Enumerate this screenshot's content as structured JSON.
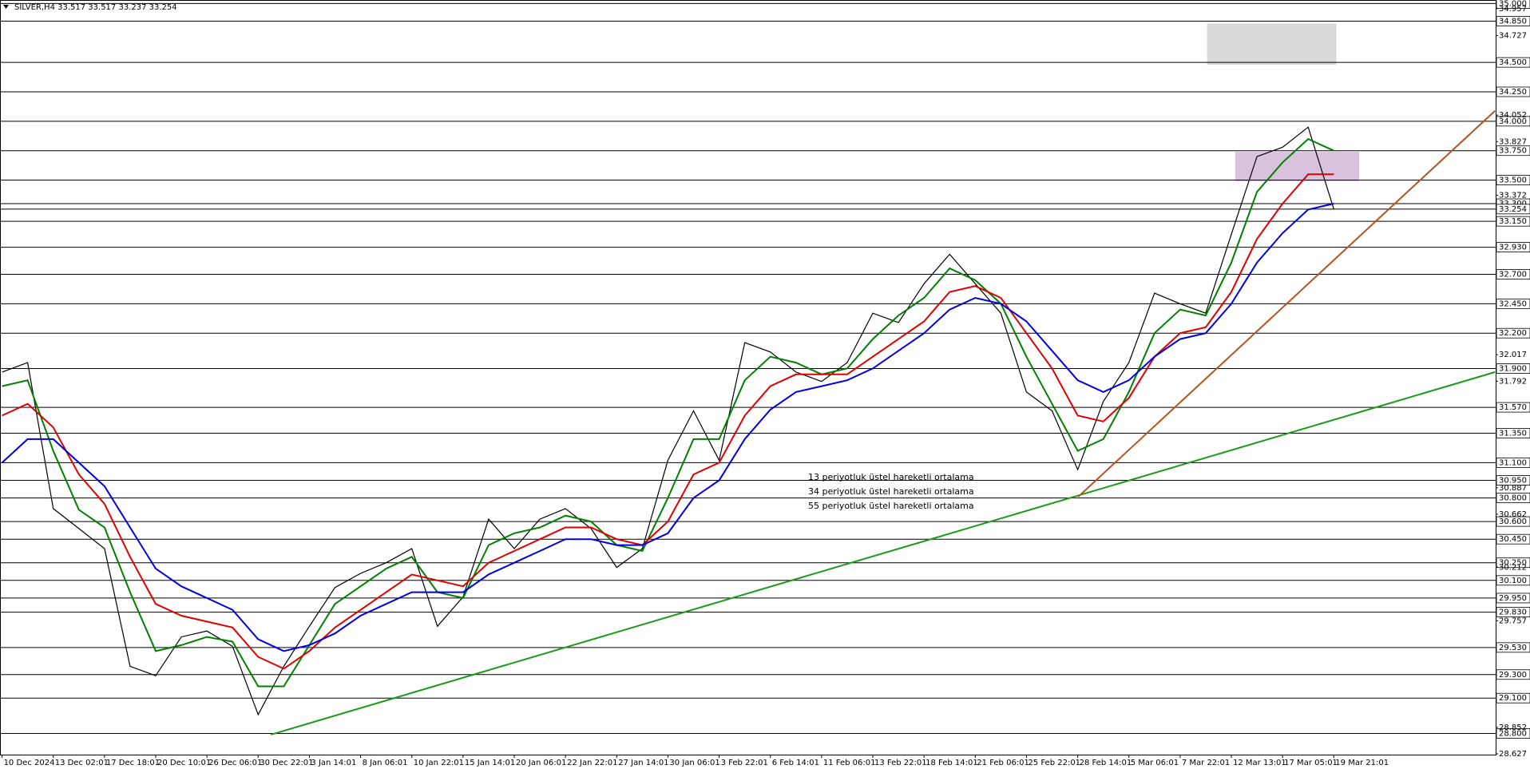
{
  "chart_data": {
    "type": "line",
    "title": "SILVER,H4  33.517 33.517 33.237 33.254",
    "categories": [
      "10 Dec 2024",
      null,
      "13 Dec 02:01",
      null,
      "17 Dec 18:01",
      null,
      "20 Dec 10:01",
      null,
      "26 Dec 06:01",
      null,
      "30 Dec 22:01",
      null,
      "3 Jan 14:01",
      null,
      "8 Jan 06:01",
      null,
      "10 Jan 22:01",
      null,
      "15 Jan 14:01",
      null,
      "20 Jan 06:01",
      null,
      "22 Jan 22:01",
      null,
      "27 Jan 14:01",
      null,
      "30 Jan 06:01",
      null,
      "3 Feb 22:01",
      null,
      "6 Feb 14:01",
      null,
      "11 Feb 06:01",
      null,
      "13 Feb 22:01",
      null,
      "18 Feb 14:01",
      null,
      "21 Feb 06:01",
      null,
      "25 Feb 22:01",
      null,
      "28 Feb 14:01",
      null,
      "5 Mar 06:01",
      null,
      "7 Mar 22:01",
      null,
      "12 Mar 13:01",
      null,
      "17 Mar 05:01",
      null,
      "19 Mar 21:01"
    ],
    "close": {
      "color": "#000000",
      "values": [
        31.87,
        31.95,
        30.71,
        30.54,
        30.37,
        29.37,
        29.29,
        29.62,
        29.67,
        29.54,
        28.96,
        29.37,
        29.71,
        30.04,
        30.16,
        30.25,
        30.37,
        29.71,
        29.96,
        30.62,
        30.37,
        30.62,
        30.71,
        30.54,
        30.21,
        30.37,
        31.12,
        31.54,
        31.12,
        32.12,
        32.04,
        31.87,
        31.79,
        31.95,
        32.37,
        32.29,
        32.62,
        32.87,
        32.62,
        32.37,
        31.7,
        31.54,
        31.04,
        31.62,
        31.95,
        32.54,
        32.45,
        32.37,
        33.04,
        33.7,
        33.78,
        33.95,
        33.254
      ]
    },
    "series": [
      {
        "name": "13 periyotluk üstel hareketli ortalama",
        "color": "#008000",
        "values": [
          31.75,
          31.8,
          31.2,
          30.7,
          30.55,
          30.0,
          29.5,
          29.55,
          29.62,
          29.58,
          29.2,
          29.2,
          29.55,
          29.9,
          30.05,
          30.2,
          30.3,
          30.0,
          29.95,
          30.4,
          30.5,
          30.55,
          30.65,
          30.6,
          30.4,
          30.35,
          30.8,
          31.3,
          31.3,
          31.8,
          32.0,
          31.95,
          31.85,
          31.9,
          32.15,
          32.35,
          32.5,
          32.75,
          32.65,
          32.45,
          32.0,
          31.6,
          31.2,
          31.3,
          31.7,
          32.2,
          32.4,
          32.35,
          32.8,
          33.4,
          33.65,
          33.85,
          33.75
        ]
      },
      {
        "name": "34 periyotluk üstel hareketli ortalama",
        "color": "#e00000",
        "values": [
          31.5,
          31.6,
          31.4,
          31.0,
          30.75,
          30.3,
          29.9,
          29.8,
          29.75,
          29.7,
          29.45,
          29.35,
          29.5,
          29.7,
          29.85,
          30.0,
          30.15,
          30.1,
          30.05,
          30.25,
          30.35,
          30.45,
          30.55,
          30.55,
          30.45,
          30.4,
          30.6,
          31.0,
          31.1,
          31.5,
          31.75,
          31.85,
          31.85,
          31.85,
          32.0,
          32.15,
          32.3,
          32.55,
          32.6,
          32.5,
          32.2,
          31.9,
          31.5,
          31.45,
          31.65,
          32.0,
          32.2,
          32.25,
          32.55,
          33.0,
          33.3,
          33.55,
          33.55
        ]
      },
      {
        "name": "55 periyotluk üstel hareketli ortalama",
        "color": "#0000e0",
        "values": [
          31.1,
          31.3,
          31.3,
          31.1,
          30.9,
          30.55,
          30.2,
          30.05,
          29.95,
          29.85,
          29.6,
          29.5,
          29.55,
          29.65,
          29.8,
          29.9,
          30.0,
          30.0,
          30.0,
          30.15,
          30.25,
          30.35,
          30.45,
          30.45,
          30.4,
          30.4,
          30.5,
          30.8,
          30.95,
          31.3,
          31.55,
          31.7,
          31.75,
          31.8,
          31.9,
          32.05,
          32.2,
          32.4,
          32.5,
          32.45,
          32.3,
          32.05,
          31.8,
          31.7,
          31.8,
          32.0,
          32.15,
          32.2,
          32.45,
          32.8,
          33.05,
          33.25,
          33.3
        ]
      }
    ],
    "trendlines": [
      {
        "color": "#1a9a1a",
        "x": [
          10.5,
          58.3
        ],
        "y": [
          28.79,
          31.87
        ]
      },
      {
        "color": "#b5541c",
        "x": [
          42.02,
          58.3
        ],
        "y": [
          30.81,
          34.09
        ]
      }
    ],
    "zones": [
      {
        "color": "#d9d9d9",
        "x": [
          47.05,
          52.1
        ],
        "y": [
          34.48,
          34.83
        ]
      },
      {
        "color": "#d8c2de",
        "x": [
          48.15,
          52.99
        ],
        "y": [
          33.49,
          33.74
        ]
      }
    ],
    "xlim": [
      -0.08,
      58.32
    ],
    "ylim": [
      28.62,
      35.03
    ],
    "levels": [
      {
        "value": 35.0,
        "label": "35.000"
      },
      {
        "value": 34.85,
        "label": "34.850"
      },
      {
        "value": 34.5,
        "label": "34.500"
      },
      {
        "value": 34.25,
        "label": "34.250"
      },
      {
        "value": 34.0,
        "label": "34.000"
      },
      {
        "value": 33.75,
        "label": "33.750"
      },
      {
        "value": 33.5,
        "label": "33.500"
      },
      {
        "value": 33.3,
        "label": "33.300"
      },
      {
        "value": 33.254,
        "label": "33.254"
      },
      {
        "value": 33.15,
        "label": "33.150"
      },
      {
        "value": 32.93,
        "label": "32.930"
      },
      {
        "value": 32.7,
        "label": "32.700"
      },
      {
        "value": 32.45,
        "label": "32.450"
      },
      {
        "value": 32.2,
        "label": "32.200"
      },
      {
        "value": 31.9,
        "label": "31.900"
      },
      {
        "value": 31.57,
        "label": "31.570"
      },
      {
        "value": 31.35,
        "label": "31.350"
      },
      {
        "value": 31.1,
        "label": "31.100"
      },
      {
        "value": 30.95,
        "label": "30.950"
      },
      {
        "value": 30.8,
        "label": "30.800"
      },
      {
        "value": 30.6,
        "label": "30.600"
      },
      {
        "value": 30.45,
        "label": "30.450"
      },
      {
        "value": 30.25,
        "label": "30.250"
      },
      {
        "value": 30.1,
        "label": "30.100"
      },
      {
        "value": 29.95,
        "label": "29.950"
      },
      {
        "value": 29.83,
        "label": "29.830"
      },
      {
        "value": 29.53,
        "label": "29.530"
      },
      {
        "value": 29.3,
        "label": "29.300"
      },
      {
        "value": 29.1,
        "label": "29.100"
      },
      {
        "value": 28.8,
        "label": "28.800"
      }
    ],
    "yticks": [
      {
        "value": 34.957,
        "label": "34.957"
      },
      {
        "value": 34.727,
        "label": "34.727"
      },
      {
        "value": 34.052,
        "label": "34.052"
      },
      {
        "value": 33.827,
        "label": "33.827"
      },
      {
        "value": 33.372,
        "label": "33.372"
      },
      32.017,
      {
        "value": 31.792,
        "label": "31.792"
      },
      {
        "value": 30.887,
        "label": "30.887"
      },
      {
        "value": 30.662,
        "label": "30.662"
      },
      {
        "value": 30.212,
        "label": "30.212"
      },
      {
        "value": 29.757,
        "label": "29.757"
      },
      {
        "value": 28.852,
        "label": "28.852"
      },
      {
        "value": 28.627,
        "label": "28.627"
      }
    ]
  }
}
